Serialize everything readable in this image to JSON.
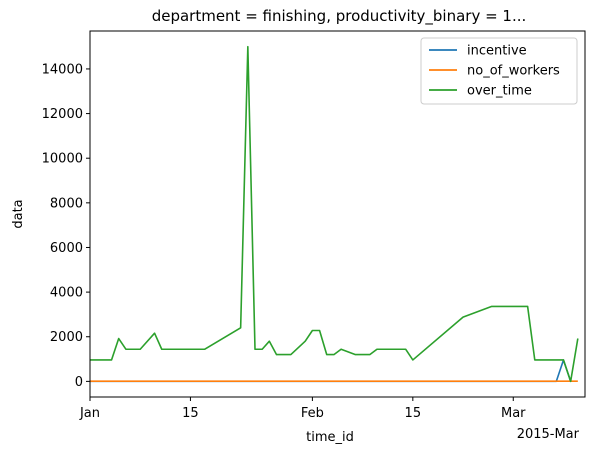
{
  "chart_data": {
    "type": "line",
    "title": "department = finishing, productivity_binary = 1...",
    "xlabel": "time_id",
    "ylabel": "data",
    "x_offset_label": "2015-Mar",
    "xlim": [
      "2015-01-01",
      "2015-03-11"
    ],
    "ylim": [
      -700,
      15700
    ],
    "x_ticks": [
      {
        "date": "2015-01-01",
        "label": "Jan"
      },
      {
        "date": "2015-01-15",
        "label": "15"
      },
      {
        "date": "2015-02-01",
        "label": "Feb"
      },
      {
        "date": "2015-02-15",
        "label": "15"
      },
      {
        "date": "2015-03-01",
        "label": "Mar"
      }
    ],
    "y_ticks": [
      0,
      2000,
      4000,
      6000,
      8000,
      10000,
      12000,
      14000
    ],
    "grid": false,
    "legend_position": "top-right",
    "series": [
      {
        "name": "incentive",
        "color": "#1f77b4",
        "points": [
          [
            "2015-01-01",
            0
          ],
          [
            "2015-01-14",
            0
          ],
          [
            "2015-01-28",
            0
          ],
          [
            "2015-02-12",
            0
          ],
          [
            "2015-02-25",
            0
          ],
          [
            "2015-03-07",
            0
          ],
          [
            "2015-03-08",
            960
          ],
          [
            "2015-03-09",
            0
          ]
        ]
      },
      {
        "name": "no_of_workers",
        "color": "#ff7f0e",
        "points": [
          [
            "2015-01-01",
            8
          ],
          [
            "2015-01-14",
            9
          ],
          [
            "2015-01-22",
            10
          ],
          [
            "2015-02-02",
            8
          ],
          [
            "2015-02-20",
            8
          ],
          [
            "2015-03-10",
            8
          ]
        ]
      },
      {
        "name": "over_time",
        "color": "#2ca02c",
        "points": [
          [
            "2015-01-01",
            960
          ],
          [
            "2015-01-03",
            960
          ],
          [
            "2015-01-04",
            960
          ],
          [
            "2015-01-05",
            1920
          ],
          [
            "2015-01-06",
            1440
          ],
          [
            "2015-01-07",
            1440
          ],
          [
            "2015-01-08",
            1440
          ],
          [
            "2015-01-10",
            2160
          ],
          [
            "2015-01-11",
            1440
          ],
          [
            "2015-01-12",
            1440
          ],
          [
            "2015-01-14",
            1440
          ],
          [
            "2015-01-17",
            1440
          ],
          [
            "2015-01-22",
            2400
          ],
          [
            "2015-01-23",
            15000
          ],
          [
            "2015-01-24",
            1440
          ],
          [
            "2015-01-25",
            1440
          ],
          [
            "2015-01-26",
            1800
          ],
          [
            "2015-01-27",
            1200
          ],
          [
            "2015-01-28",
            1200
          ],
          [
            "2015-01-29",
            1200
          ],
          [
            "2015-01-31",
            1800
          ],
          [
            "2015-02-01",
            2280
          ],
          [
            "2015-02-02",
            2280
          ],
          [
            "2015-02-03",
            1200
          ],
          [
            "2015-02-04",
            1200
          ],
          [
            "2015-02-05",
            1440
          ],
          [
            "2015-02-07",
            1200
          ],
          [
            "2015-02-08",
            1200
          ],
          [
            "2015-02-09",
            1200
          ],
          [
            "2015-02-10",
            1440
          ],
          [
            "2015-02-12",
            1440
          ],
          [
            "2015-02-14",
            1440
          ],
          [
            "2015-02-15",
            960
          ],
          [
            "2015-02-22",
            2880
          ],
          [
            "2015-02-26",
            3360
          ],
          [
            "2015-03-03",
            3360
          ],
          [
            "2015-03-04",
            960
          ],
          [
            "2015-03-08",
            960
          ],
          [
            "2015-03-09",
            0
          ],
          [
            "2015-03-10",
            1920
          ]
        ]
      }
    ]
  }
}
